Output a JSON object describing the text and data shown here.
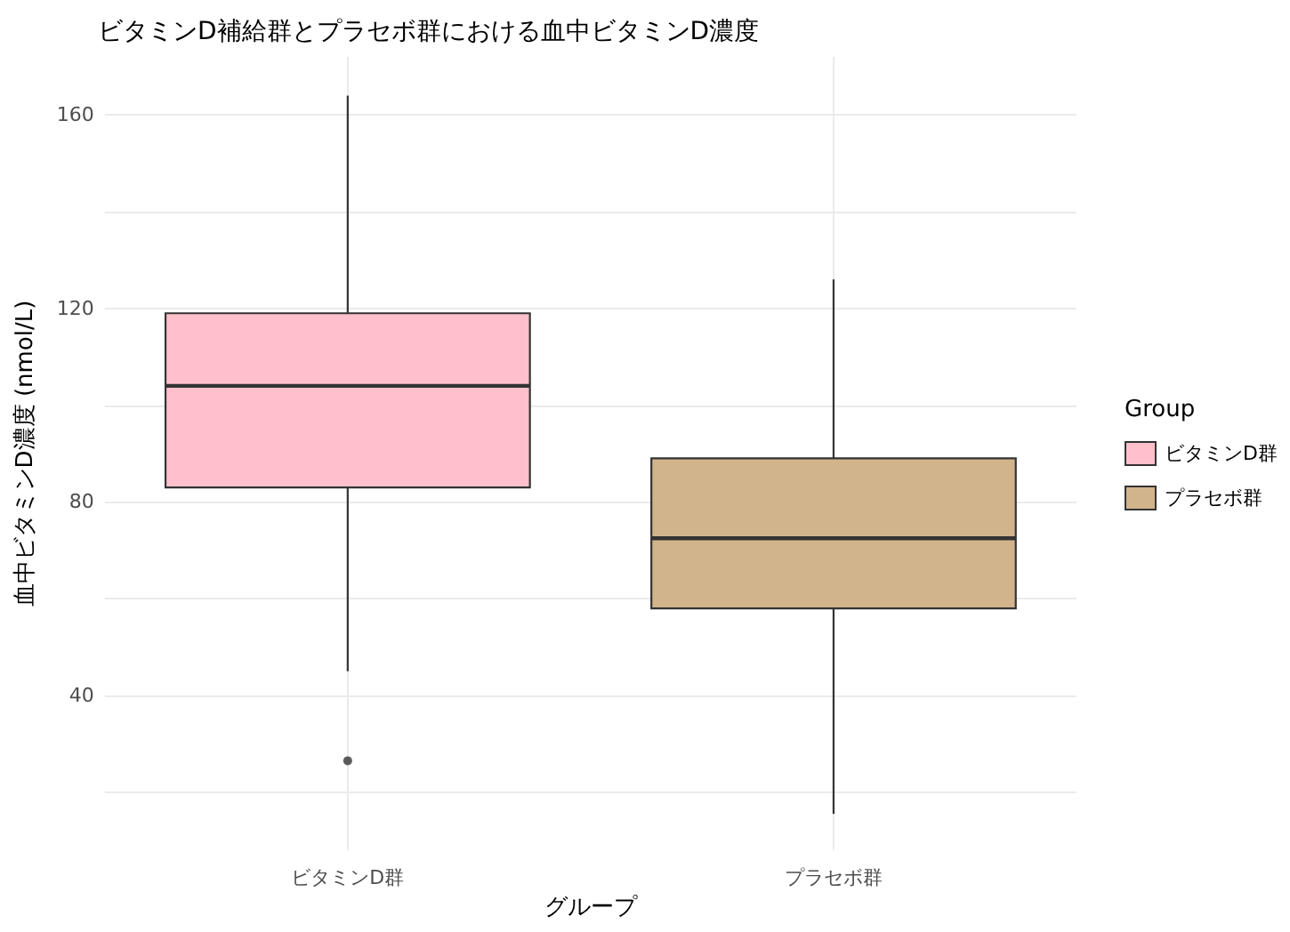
{
  "chart_data": {
    "type": "box",
    "title": "ビタミンD補給群とプラセボ群における血中ビタミンD濃度",
    "xlabel": "グループ",
    "ylabel": "血中ビタミンD濃度 (nmol/L)",
    "legend_title": "Group",
    "categories": [
      "ビタミンD群",
      "プラセボ群"
    ],
    "series": [
      {
        "name": "ビタミンD群",
        "color": "#ffc0cb",
        "boxes": [
          {
            "low": 45,
            "q1": 83,
            "median": 104,
            "q3": 119,
            "high": 164,
            "outliers": [
              26.5
            ]
          },
          null
        ]
      },
      {
        "name": "プラセボ群",
        "color": "#d2b48c",
        "boxes": [
          null,
          {
            "low": 15.5,
            "q1": 58,
            "median": 72.5,
            "q3": 89,
            "high": 126
          }
        ]
      }
    ],
    "ylim": [
      8,
      172
    ],
    "yticks": [
      {
        "value": 20,
        "label": null
      },
      40,
      {
        "value": 60,
        "label": null
      },
      80,
      {
        "value": 100,
        "label": null
      },
      120,
      {
        "value": 140,
        "label": null
      },
      160
    ],
    "grid": true,
    "legend": "right"
  }
}
